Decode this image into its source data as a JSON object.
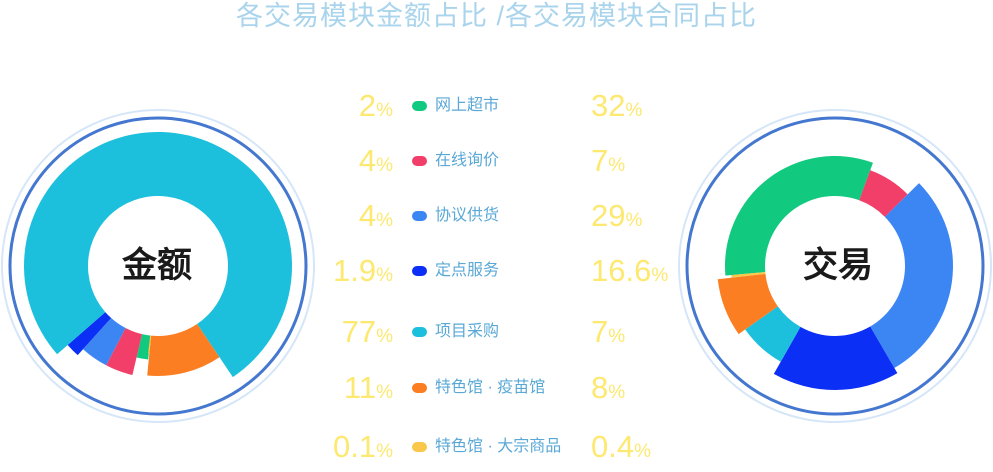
{
  "header": {
    "title": "各交易模块金额占比 /各交易模块合同占比"
  },
  "chart_data": [
    {
      "type": "pie",
      "title": "金额",
      "categories": [
        "网上超市",
        "在线询价",
        "协议供货",
        "定点服务",
        "项目采购",
        "特色馆 · 疫苗馆",
        "特色馆 · 大宗商品"
      ],
      "values": [
        2,
        4,
        4,
        1.9,
        77,
        11,
        0.1
      ],
      "labels": [
        "2",
        "4",
        "4",
        "1.9",
        "77",
        "11",
        "0.1"
      ],
      "unit": "%",
      "colors": [
        "#11c97f",
        "#f23f6a",
        "#3c86f4",
        "#0c2ff5",
        "#1dc0dc",
        "#fb7f22",
        "#f9c74a"
      ]
    },
    {
      "type": "pie",
      "title": "交易",
      "categories": [
        "网上超市",
        "在线询价",
        "协议供货",
        "定点服务",
        "项目采购",
        "特色馆 · 疫苗馆",
        "特色馆 · 大宗商品"
      ],
      "values": [
        32,
        7,
        29,
        16.6,
        7,
        8,
        0.4
      ],
      "labels": [
        "32",
        "7",
        "29",
        "16.6",
        "7",
        "8",
        "0.4"
      ],
      "unit": "%",
      "colors": [
        "#11c97f",
        "#f23f6a",
        "#3c86f4",
        "#0c2ff5",
        "#1dc0dc",
        "#fb7f22",
        "#f9c74a"
      ]
    }
  ]
}
